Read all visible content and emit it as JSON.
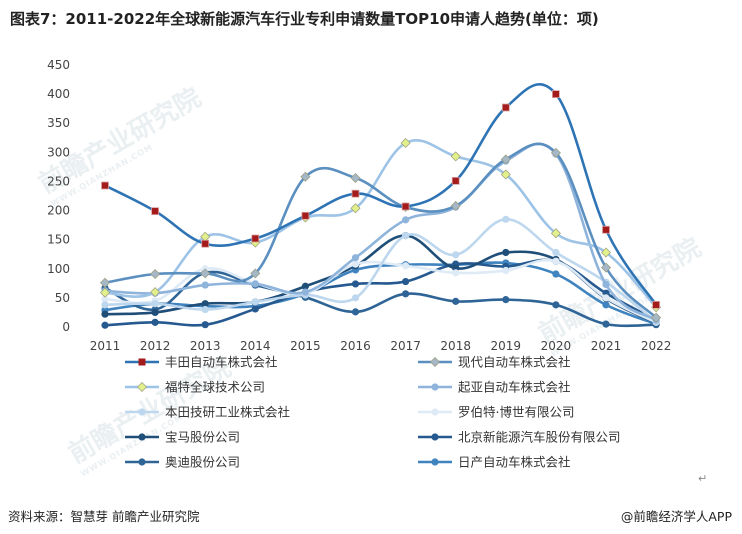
{
  "title": "图表7：2011-2022年全球新能源汽车行业专利申请数量TOP10申请人趋势(单位：项)",
  "source": "资料来源：智慧芽 前瞻产业研究院",
  "brand": "@前瞻经济学人APP",
  "watermark": {
    "text": "前瞻产业研究院",
    "sub": "WWW.QIANZHAN.COM"
  },
  "return_mark": "↵",
  "chart_data": {
    "type": "line",
    "categories": [
      "2011",
      "2012",
      "2013",
      "2014",
      "2015",
      "2016",
      "2017",
      "2018",
      "2019",
      "2020",
      "2021",
      "2022"
    ],
    "ylim": [
      0,
      450
    ],
    "yticks": [
      0,
      50,
      100,
      150,
      200,
      250,
      300,
      350,
      400,
      450
    ],
    "grid": false,
    "legend_position": "bottom",
    "series": [
      {
        "name": "丰田自动车株式会社",
        "color": "#2e74b5",
        "marker": "square",
        "marker_fill": "#a31b1b",
        "values": [
          243,
          199,
          143,
          152,
          191,
          229,
          207,
          251,
          377,
          400,
          167,
          38
        ]
      },
      {
        "name": "现代自动车株式会社",
        "color": "#5b8fc0",
        "marker": "diamond",
        "marker_fill": "#a6b8c8",
        "values": [
          76,
          91,
          92,
          92,
          258,
          256,
          206,
          208,
          288,
          299,
          102,
          16
        ]
      },
      {
        "name": "福特全球技术公司",
        "color": "#9dc3e6",
        "marker": "diamond",
        "marker_fill": "#e2f08c",
        "values": [
          59,
          60,
          155,
          145,
          188,
          204,
          316,
          293,
          262,
          161,
          128,
          34
        ]
      },
      {
        "name": "起亚自动车株式会社",
        "color": "#8fb4dc",
        "marker": "circle",
        "marker_fill": "#8fb4dc",
        "values": [
          62,
          58,
          72,
          74,
          60,
          119,
          184,
          206,
          285,
          297,
          73,
          12
        ]
      },
      {
        "name": "本田技研工业株式会社",
        "color": "#bdd7ee",
        "marker": "circle",
        "marker_fill": "#bdd7ee",
        "values": [
          38,
          40,
          30,
          43,
          55,
          50,
          157,
          124,
          185,
          128,
          77,
          9
        ]
      },
      {
        "name": "罗伯特·博世有限公司",
        "color": "#deebf7",
        "marker": "circle",
        "marker_fill": "#deebf7",
        "values": [
          48,
          45,
          100,
          75,
          58,
          108,
          105,
          93,
          97,
          113,
          50,
          8
        ]
      },
      {
        "name": "宝马股份公司",
        "color": "#1f4e79",
        "marker": "circle",
        "marker_fill": "#1f4e79",
        "values": [
          22,
          25,
          40,
          43,
          70,
          105,
          157,
          101,
          128,
          116,
          49,
          7
        ]
      },
      {
        "name": "北京新能源汽车股份有限公司",
        "color": "#25598f",
        "marker": "circle",
        "marker_fill": "#25598f",
        "values": [
          3,
          8,
          4,
          31,
          60,
          74,
          78,
          108,
          104,
          113,
          58,
          12
        ]
      },
      {
        "name": "奥迪股份公司",
        "color": "#2f6596",
        "marker": "circle",
        "marker_fill": "#2f6596",
        "values": [
          67,
          30,
          93,
          72,
          51,
          26,
          57,
          44,
          47,
          38,
          5,
          4
        ]
      },
      {
        "name": "日产自动车株式会社",
        "color": "#3f83bf",
        "marker": "circle",
        "marker_fill": "#3f83bf",
        "values": [
          29,
          40,
          36,
          36,
          57,
          98,
          107,
          107,
          110,
          91,
          38,
          5
        ]
      }
    ]
  }
}
